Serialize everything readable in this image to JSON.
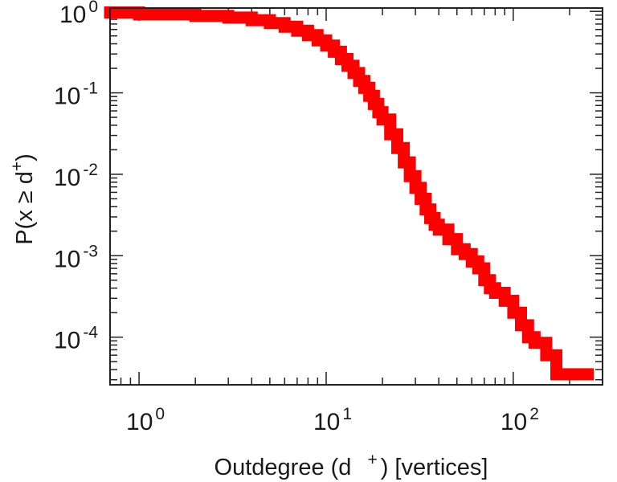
{
  "chart_data": {
    "type": "line",
    "xscale": "log",
    "yscale": "log",
    "xlim": [
      0.7,
      300
    ],
    "ylim": [
      2.6e-05,
      1.1
    ],
    "grid": false,
    "legend": "none",
    "x_ticks": [
      {
        "base": "10",
        "exp": "0",
        "value": 1
      },
      {
        "base": "10",
        "exp": "1",
        "value": 10
      },
      {
        "base": "10",
        "exp": "2",
        "value": 100
      }
    ],
    "y_ticks": [
      {
        "base": "10",
        "exp": "0",
        "value": 1
      },
      {
        "base": "10",
        "exp": "-1",
        "value": 0.1
      },
      {
        "base": "10",
        "exp": "-2",
        "value": 0.01
      },
      {
        "base": "10",
        "exp": "-3",
        "value": 0.001
      },
      {
        "base": "10",
        "exp": "-4",
        "value": 0.0001
      }
    ],
    "xlabel": {
      "before": "Outdegree (d",
      "sup": "+",
      "after": ") [vertices]"
    },
    "ylabel": {
      "before": "P(x ",
      "rel": "≥",
      "mid": " d",
      "sup": "+",
      "after": ")"
    },
    "series": [
      {
        "color": "#ff0000",
        "x": [
          0.7,
          1,
          2,
          3,
          4,
          5,
          6,
          7,
          8,
          9,
          10,
          11,
          12,
          13,
          14,
          15,
          16,
          17,
          18,
          19,
          20,
          22,
          24,
          26,
          28,
          30,
          32,
          34,
          36,
          38,
          40,
          45,
          50,
          55,
          60,
          65,
          70,
          75,
          80,
          90,
          100,
          110,
          120,
          130,
          150,
          170,
          250
        ],
        "y": [
          0.97,
          0.92,
          0.88,
          0.84,
          0.78,
          0.72,
          0.65,
          0.58,
          0.51,
          0.44,
          0.38,
          0.32,
          0.26,
          0.215,
          0.175,
          0.14,
          0.115,
          0.092,
          0.073,
          0.058,
          0.047,
          0.031,
          0.021,
          0.014,
          0.0095,
          0.0068,
          0.005,
          0.0037,
          0.0029,
          0.0024,
          0.0021,
          0.0016,
          0.0012,
          0.00105,
          0.00085,
          0.0007,
          0.0005,
          0.0004,
          0.00035,
          0.00028,
          0.0002,
          0.00014,
          0.0001,
          8.5e-05,
          6e-05,
          3.5e-05,
          3.5e-05
        ]
      }
    ]
  }
}
